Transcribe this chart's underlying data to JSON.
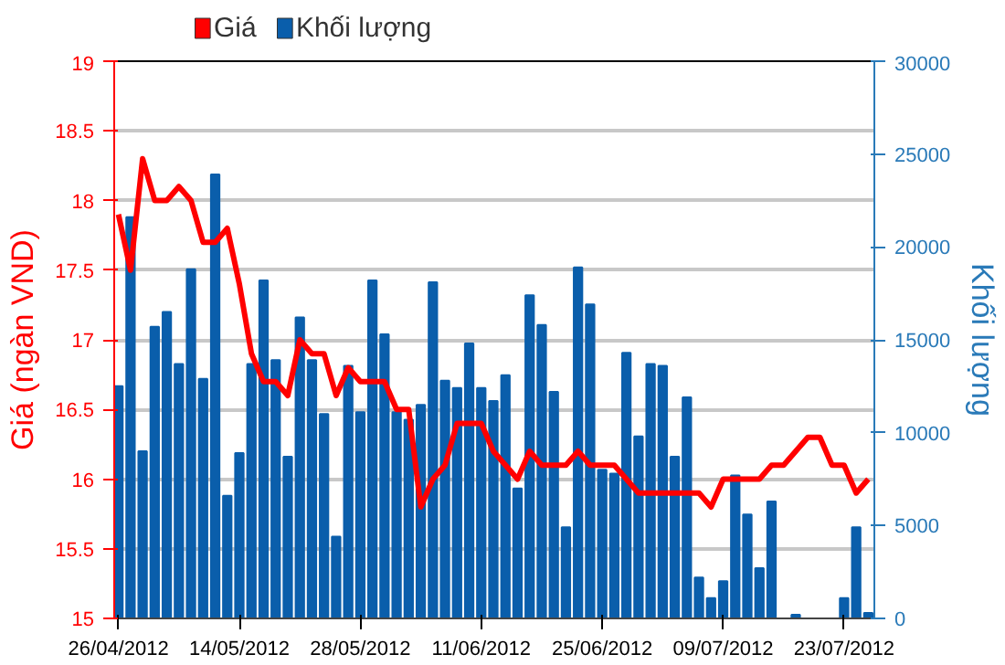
{
  "chart_data": {
    "type": "bar",
    "categories": [
      "26/04/2012",
      null,
      null,
      null,
      null,
      null,
      null,
      null,
      null,
      null,
      "14/05/2012",
      null,
      null,
      null,
      null,
      null,
      null,
      null,
      null,
      null,
      "28/05/2012",
      null,
      null,
      null,
      null,
      null,
      null,
      null,
      null,
      null,
      "11/06/2012",
      null,
      null,
      null,
      null,
      null,
      null,
      null,
      null,
      null,
      "25/06/2012",
      null,
      null,
      null,
      null,
      null,
      null,
      null,
      null,
      null,
      "09/07/2012",
      null,
      null,
      null,
      null,
      null,
      null,
      null,
      null,
      null,
      "23/07/2012",
      null,
      null
    ],
    "series": [
      {
        "name": "Giá",
        "type": "line",
        "axis": "y",
        "color": "#ff0000",
        "values": [
          17.9,
          17.5,
          18.3,
          18.0,
          18.0,
          18.1,
          18.0,
          17.7,
          17.7,
          17.8,
          17.4,
          16.9,
          16.7,
          16.7,
          16.6,
          17.0,
          16.9,
          16.9,
          16.6,
          16.8,
          16.7,
          16.7,
          16.7,
          16.5,
          16.5,
          15.8,
          16.0,
          16.1,
          16.4,
          16.4,
          16.4,
          16.2,
          16.1,
          16.0,
          16.2,
          16.1,
          16.1,
          16.1,
          16.2,
          16.1,
          16.1,
          16.1,
          16.0,
          15.9,
          15.9,
          15.9,
          15.9,
          15.9,
          15.9,
          15.8,
          16.0,
          16.0,
          16.0,
          16.0,
          16.1,
          16.1,
          16.2,
          16.3,
          16.3,
          16.1,
          16.1,
          15.9,
          16.0
        ]
      },
      {
        "name": "Khối lượng",
        "axis": "y2",
        "color": "#0a5eab",
        "values": [
          12500,
          21600,
          9000,
          15700,
          16500,
          13700,
          18800,
          12900,
          23900,
          6600,
          8900,
          13700,
          18200,
          13900,
          8700,
          16200,
          13900,
          11000,
          4400,
          13600,
          11100,
          18200,
          15300,
          11100,
          10700,
          11500,
          18100,
          12800,
          12400,
          14800,
          12400,
          11700,
          13100,
          7000,
          17400,
          15800,
          12200,
          4900,
          18900,
          16900,
          8000,
          7800,
          14300,
          9800,
          13700,
          13600,
          8700,
          11900,
          2200,
          1100,
          2000,
          7700,
          5600,
          2700,
          6300,
          0,
          200,
          0,
          0,
          0,
          1100,
          4900,
          300
        ]
      }
    ],
    "ylabel": "Giá (ngàn VND)",
    "y2label": "Khối lượng",
    "ylim": [
      15,
      19
    ],
    "yticks": [
      15,
      15.5,
      16,
      16.5,
      17,
      17.5,
      18,
      18.5,
      19
    ],
    "y2lim": [
      0,
      30000
    ],
    "y2ticks": [
      0,
      5000,
      10000,
      15000,
      20000,
      25000,
      30000
    ],
    "grid": "y",
    "legend": "top left"
  }
}
